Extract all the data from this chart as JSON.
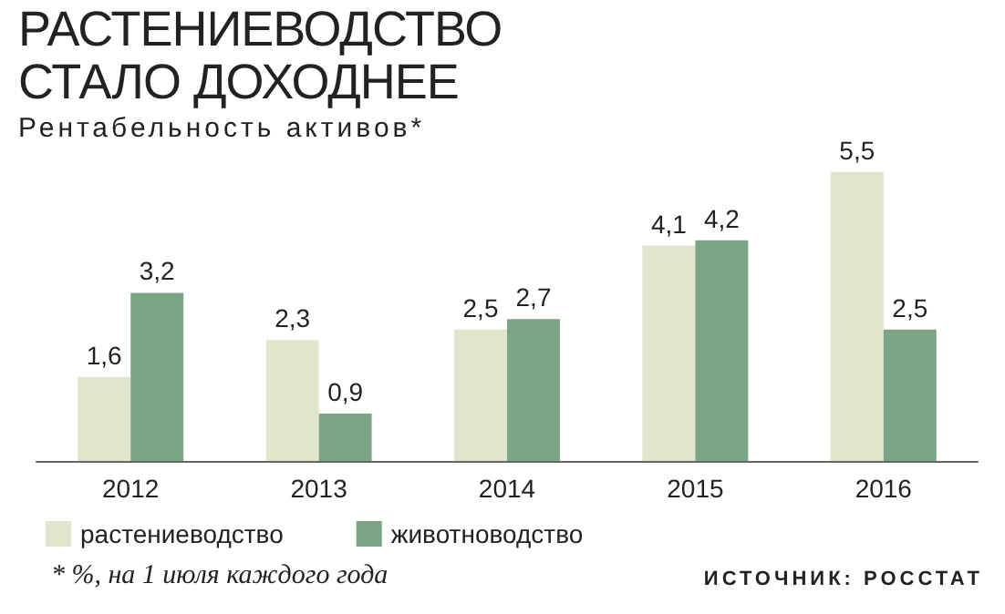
{
  "chart_data": {
    "type": "bar",
    "title": "РАСТЕНИЕВОДСТВО СТАЛО ДОХОДНЕЕ",
    "subtitle": "Рентабельность активов*",
    "categories": [
      "2012",
      "2013",
      "2014",
      "2015",
      "2016"
    ],
    "series": [
      {
        "name": "растениеводство",
        "color": "#dfe6cb",
        "values": [
          1.6,
          2.3,
          2.5,
          4.1,
          5.5
        ],
        "value_labels": [
          "1,6",
          "2,3",
          "2,5",
          "4,1",
          "5,5"
        ]
      },
      {
        "name": "животноводство",
        "color": "#7ca585",
        "values": [
          3.2,
          0.9,
          2.7,
          4.2,
          2.5
        ],
        "value_labels": [
          "3,2",
          "0,9",
          "2,7",
          "4,2",
          "2,5"
        ]
      }
    ],
    "legend": "bottom",
    "annotations": [
      "* %, на 1 июля каждого года",
      "ИСТОЧНИК: РОССТАТ"
    ]
  }
}
